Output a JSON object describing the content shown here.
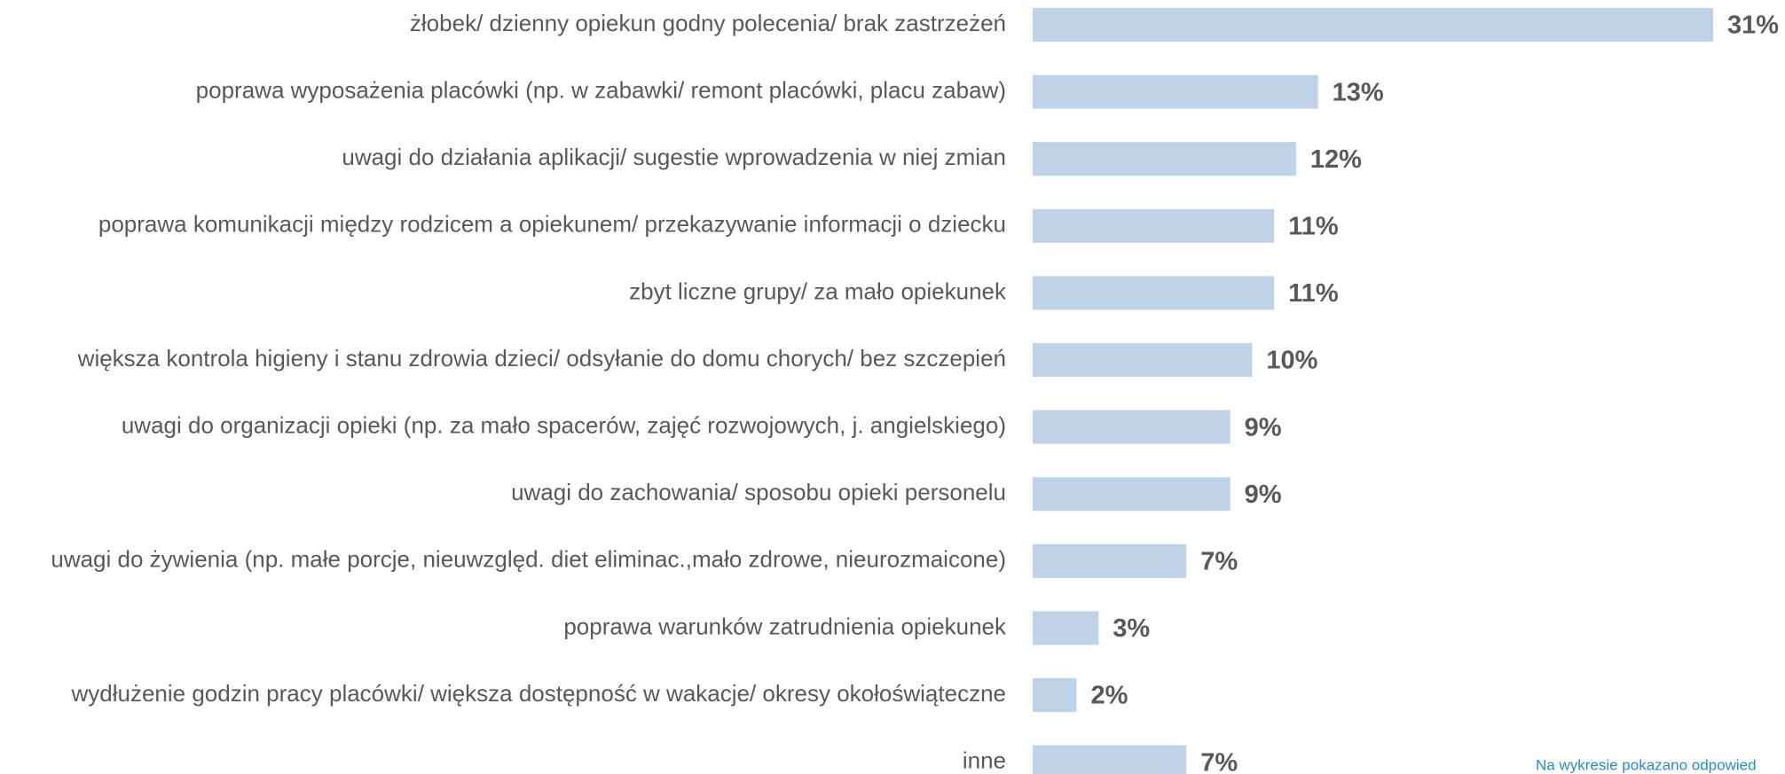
{
  "chart_data": {
    "type": "bar",
    "orientation": "horizontal",
    "categories": [
      "żłobek/ dzienny opiekun godny polecenia/ brak zastrzeżeń",
      "poprawa wyposażenia placówki (np. w zabawki/ remont placówki, placu zabaw)",
      "uwagi do działania aplikacji/ sugestie wprowadzenia w niej zmian",
      "poprawa komunikacji między rodzicem a opiekunem/ przekazywanie informacji o dziecku",
      "zbyt liczne grupy/ za mało opiekunek",
      "większa kontrola higieny i stanu zdrowia dzieci/ odsyłanie do domu chorych/ bez szczepień",
      "uwagi do organizacji opieki (np. za mało spacerów, zajęć rozwojowych, j. angielskiego)",
      "uwagi do zachowania/ sposobu opieki personelu",
      "uwagi do żywienia (np. małe porcje, nieuwzględ. diet eliminac.,mało zdrowe, nieurozmaicone)",
      "poprawa warunków zatrudnienia opiekunek",
      "wydłużenie godzin pracy placówki/ większa dostępność w wakacje/ okresy okołoświąteczne",
      "inne"
    ],
    "values": [
      31,
      13,
      12,
      11,
      11,
      10,
      9,
      9,
      7,
      3,
      2,
      7
    ],
    "value_labels": [
      "31%",
      "13%",
      "12%",
      "11%",
      "11%",
      "10%",
      "9%",
      "9%",
      "7%",
      "3%",
      "2%",
      "7%"
    ],
    "color": "#c0d2e8",
    "note": "Na wykresie pokazano odpowied"
  }
}
